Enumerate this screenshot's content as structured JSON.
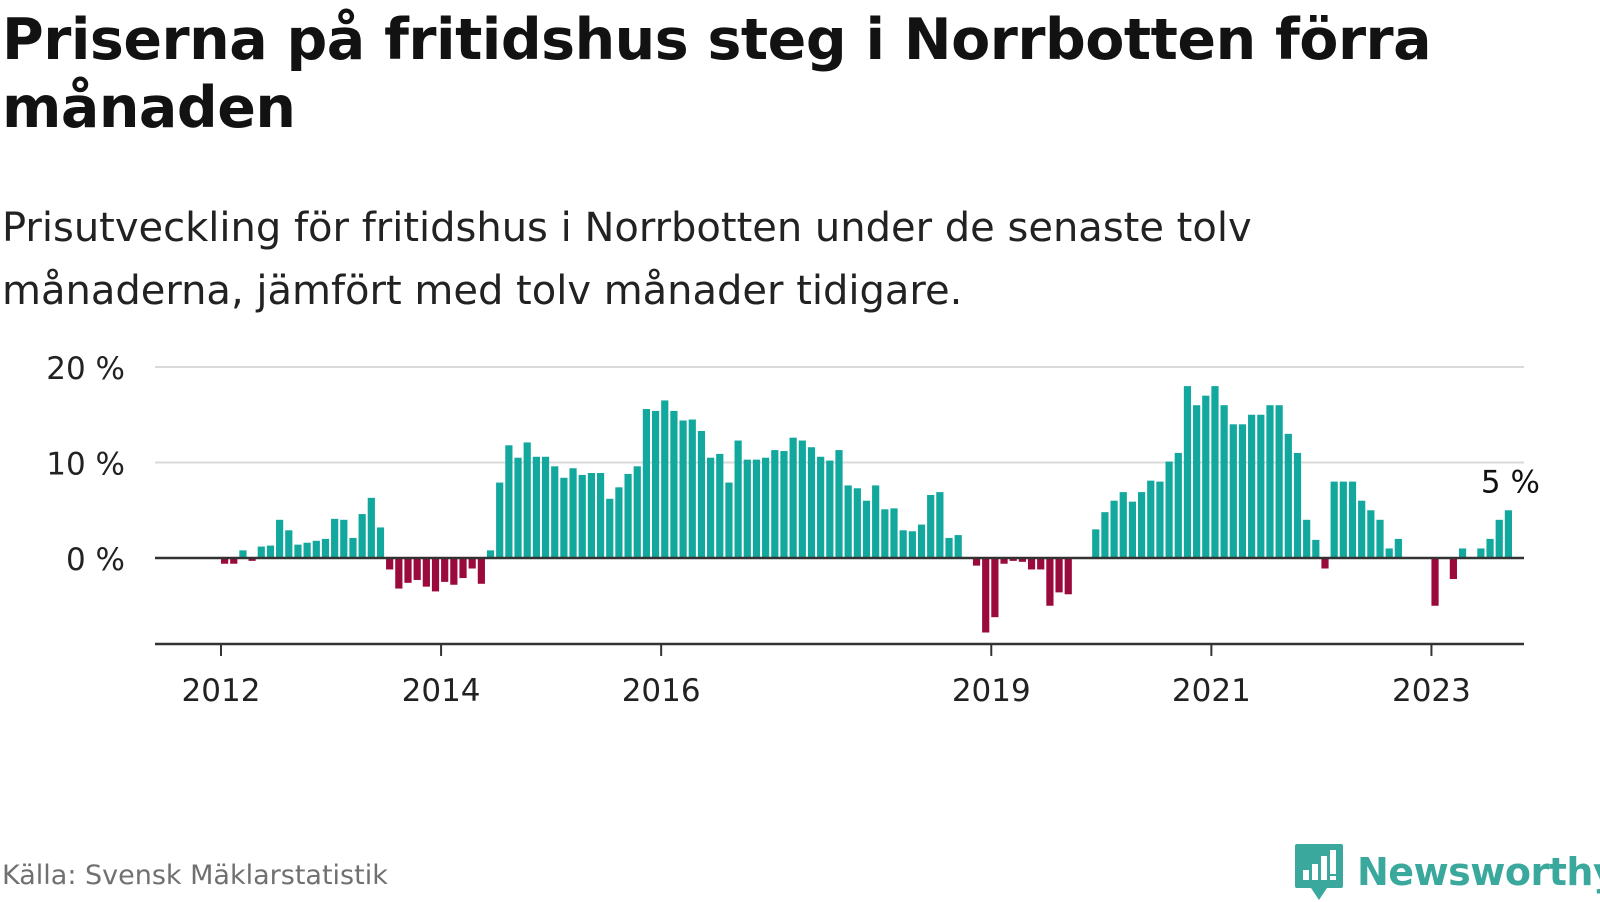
{
  "title": "Priserna på fritidshus steg i Norrbotten förra månaden",
  "subtitle": "Prisutveckling för fritidshus i Norrbotten under de senaste tolv månaderna, jämfört med tolv månader tidigare.",
  "source": "Källa: Svensk Mäklarstatistik",
  "brand": "Newsworthy",
  "colors": {
    "positive": "#13a89e",
    "negative": "#9a0a3d",
    "brand": "#3aa89c",
    "gridline": "#d9d9d9",
    "axis": "#333333"
  },
  "chart_data": {
    "type": "bar",
    "ylim": [
      -9,
      20
    ],
    "y_ticks": [
      {
        "value": 20,
        "label": "20 %"
      },
      {
        "value": 10,
        "label": "10 %"
      },
      {
        "value": 0,
        "label": "0 %"
      }
    ],
    "x_ticks": [
      {
        "year": 2012,
        "label": "2012"
      },
      {
        "year": 2014,
        "label": "2014"
      },
      {
        "year": 2016,
        "label": "2016"
      },
      {
        "year": 2019,
        "label": "2019"
      },
      {
        "year": 2021,
        "label": "2021"
      },
      {
        "year": 2023,
        "label": "2023"
      }
    ],
    "annotation": "5 %",
    "series": [
      {
        "start": "2011-01",
        "values": [
          null,
          null,
          null,
          null,
          null,
          null,
          null,
          null,
          null,
          null,
          null,
          null,
          -0.6,
          -0.6,
          0.8,
          -0.3,
          1.2,
          1.3,
          4.0,
          2.9,
          1.4,
          1.6,
          1.8,
          2.0,
          4.1,
          4.0,
          2.1,
          4.6,
          6.3,
          3.2,
          -1.2,
          -3.2,
          -2.6,
          -2.3,
          -3.0,
          -3.5,
          -2.5,
          -2.8,
          -2.1,
          -1.1,
          -2.7,
          0.8,
          7.9,
          11.8,
          10.5,
          12.1,
          10.6,
          10.6,
          9.6,
          8.4,
          9.4,
          8.7,
          8.9,
          8.9,
          6.2,
          7.4,
          8.8,
          9.6,
          15.6,
          15.4,
          16.5,
          15.4,
          14.4,
          14.5,
          13.3,
          10.5,
          10.9,
          7.9,
          12.3,
          10.3,
          10.3,
          10.5,
          11.3,
          11.2,
          12.6,
          12.3,
          11.6,
          10.6,
          10.2,
          11.3,
          7.6,
          7.3,
          6.0,
          7.6,
          5.1,
          5.2,
          2.9,
          2.8,
          3.5,
          6.6,
          6.9,
          2.1,
          2.4,
          null,
          -0.8,
          -7.8,
          -6.2,
          -0.6,
          -0.3,
          -0.4,
          -1.2,
          -1.2,
          -5.0,
          -3.6,
          -3.8,
          null,
          null,
          3.0,
          4.8,
          6.0,
          6.9,
          5.9,
          6.9,
          8.1,
          8.0,
          10.1,
          11.0,
          18.0,
          16.0,
          17.0,
          18.0,
          16.0,
          14.0,
          14.0,
          15.0,
          15.0,
          16.0,
          16.0,
          13.0,
          11.0,
          4.0,
          1.9,
          -1.1,
          8.0,
          8.0,
          8.0,
          6.0,
          5.0,
          4.0,
          1.0,
          2.0,
          null,
          null,
          null,
          -5.0,
          null,
          -2.2,
          1.0,
          null,
          1.0,
          2.0,
          4.0,
          5.0
        ]
      }
    ]
  }
}
